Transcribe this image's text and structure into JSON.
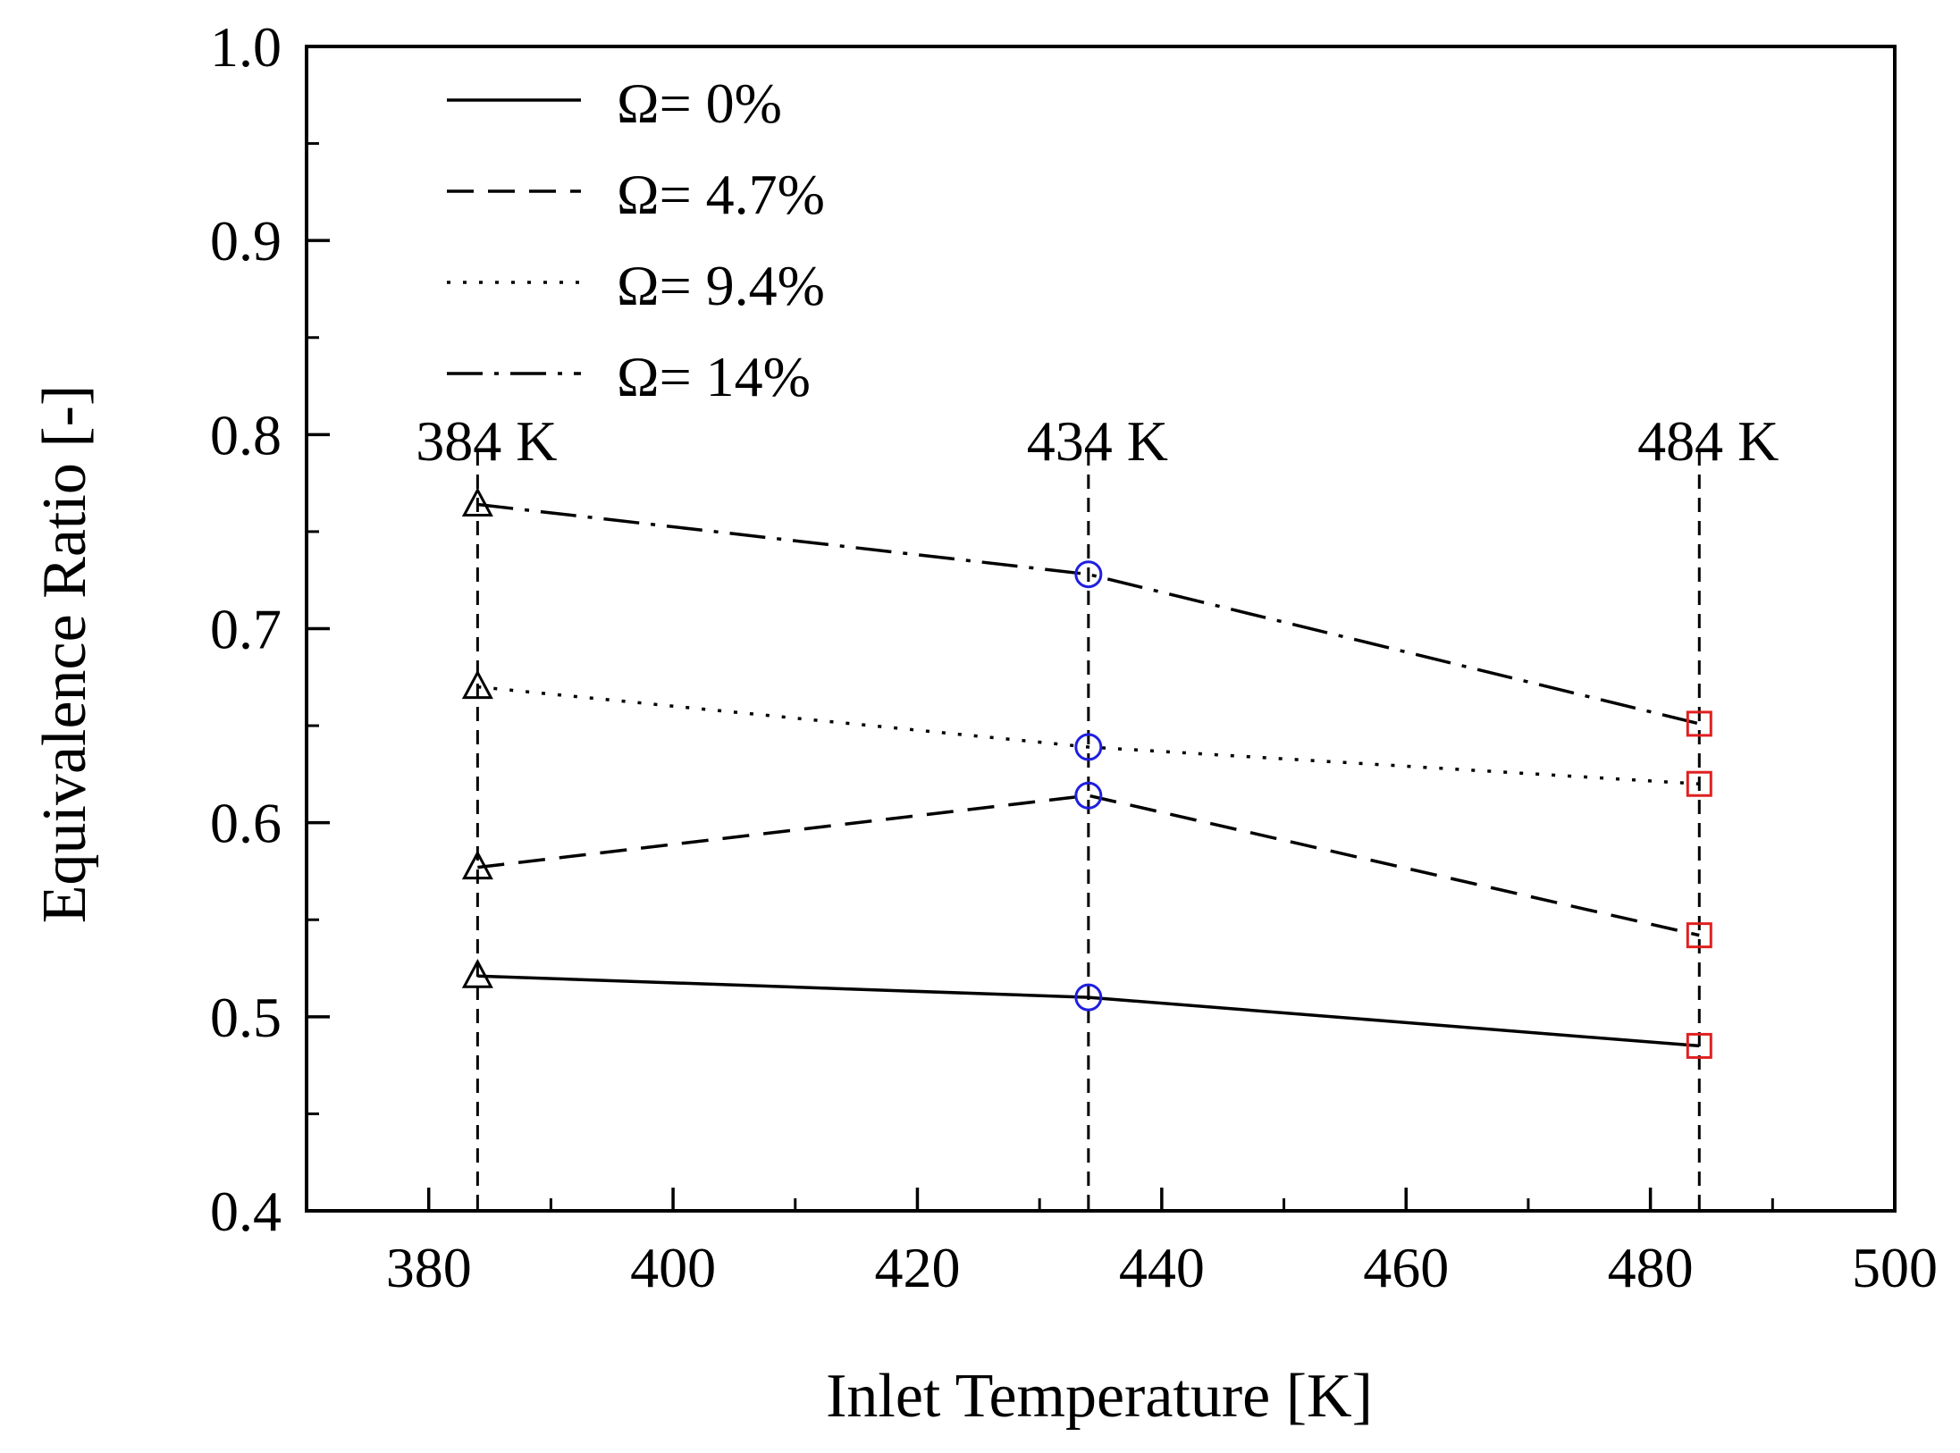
{
  "chart_data": {
    "type": "line",
    "title": "",
    "xlabel": "Inlet Temperature [K]",
    "ylabel": "Equivalence Ratio [-]",
    "xlim": [
      370,
      500
    ],
    "ylim": [
      0.4,
      1.0
    ],
    "x_ticks": [
      380,
      400,
      420,
      440,
      460,
      480,
      500
    ],
    "y_ticks": [
      0.4,
      0.5,
      0.6,
      0.7,
      0.8,
      0.9,
      1.0
    ],
    "x_tick_labels": [
      "380",
      "400",
      "420",
      "440",
      "460",
      "480",
      "500"
    ],
    "y_tick_labels": [
      "0.4",
      "0.5",
      "0.6",
      "0.7",
      "0.8",
      "0.9",
      "1.0"
    ],
    "x": [
      384,
      434,
      484
    ],
    "series": [
      {
        "name": "Ω= 0%",
        "values": [
          0.521,
          0.51,
          0.485
        ],
        "line_style": "solid"
      },
      {
        "name": "Ω= 4.7%",
        "values": [
          0.577,
          0.614,
          0.542
        ],
        "line_style": "dashed"
      },
      {
        "name": "Ω= 9.4%",
        "values": [
          0.67,
          0.639,
          0.62
        ],
        "line_style": "dotted"
      },
      {
        "name": "Ω= 14%",
        "values": [
          0.764,
          0.728,
          0.651
        ],
        "line_style": "dashdot"
      }
    ],
    "markers": [
      {
        "x": 384,
        "shape": "triangle",
        "color": "#000000"
      },
      {
        "x": 434,
        "shape": "circle",
        "color": "#1f1fe0"
      },
      {
        "x": 484,
        "shape": "square",
        "color": "#e02020"
      }
    ],
    "reference_lines": [
      {
        "x": 384,
        "label": "384 K"
      },
      {
        "x": 434,
        "label": "434 K"
      },
      {
        "x": 484,
        "label": "484 K"
      }
    ],
    "legend_position": "top-left",
    "grid": false
  }
}
